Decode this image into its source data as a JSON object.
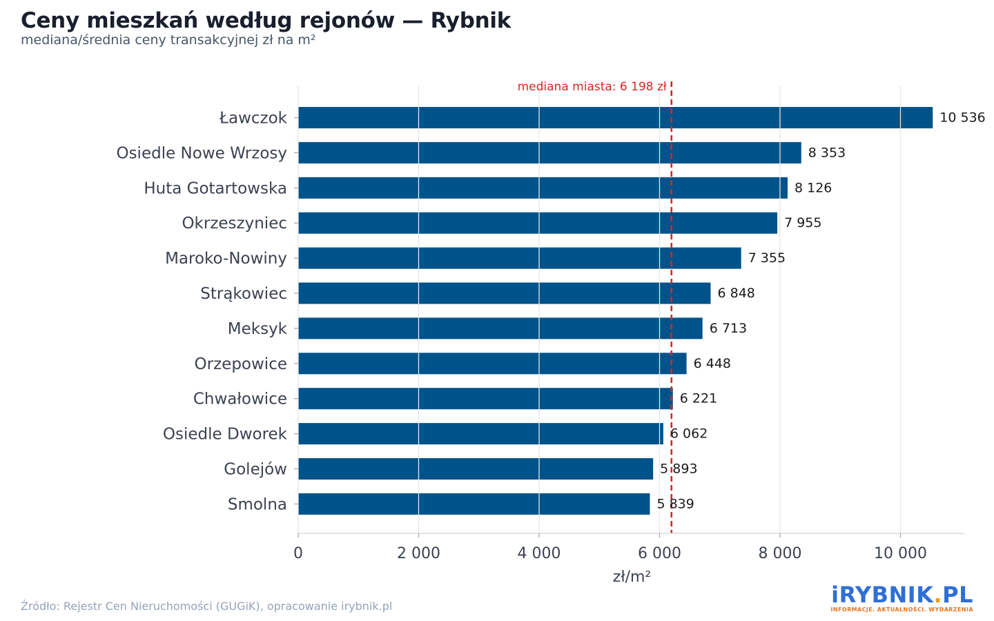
{
  "header": {
    "title": "Ceny mieszkań według rejonów — Rybnik",
    "subtitle": "mediana/średnia ceny transakcyjnej zł na m²"
  },
  "footer": {
    "source": "Źródło: Rejestr Cen Nieruchomości (GUGiK), opracowanie irybnik.pl",
    "logo_text": "IRYBNIK.PL",
    "logo_tagline": "INFORMACJE. AKTUALNOŚCI. WYDARZENIA"
  },
  "chart_data": {
    "type": "bar",
    "orientation": "horizontal",
    "categories": [
      "Ławczok",
      "Osiedle Nowe Wrzosy",
      "Huta Gotartowska",
      "Okrzeszyniec",
      "Maroko-Nowiny",
      "Strąkowiec",
      "Meksyk",
      "Orzepowice",
      "Chwałowice",
      "Osiedle Dworek",
      "Golejów",
      "Smolna"
    ],
    "values": [
      10536,
      8353,
      8126,
      7955,
      7355,
      6848,
      6713,
      6448,
      6221,
      6062,
      5893,
      5839
    ],
    "value_labels": [
      "10 536",
      "8 353",
      "8 126",
      "7 955",
      "7 355",
      "6 848",
      "6 713",
      "6 448",
      "6 221",
      "6 062",
      "5 893",
      "5 839"
    ],
    "xlabel": "zł/m²",
    "xlim": [
      0,
      11000
    ],
    "xticks": [
      0,
      2000,
      4000,
      6000,
      8000,
      10000
    ],
    "xtick_labels": [
      "0",
      "2 000",
      "4 000",
      "6 000",
      "8 000",
      "10 000"
    ],
    "grid": "vertical",
    "reference_line": {
      "value": 6198,
      "label": "mediana miasta: 6 198 zł"
    },
    "colors": {
      "bar": "#00538a",
      "reference": "#d62728",
      "grid": "#e5e5e5",
      "axis_text": "#3b4252"
    }
  }
}
